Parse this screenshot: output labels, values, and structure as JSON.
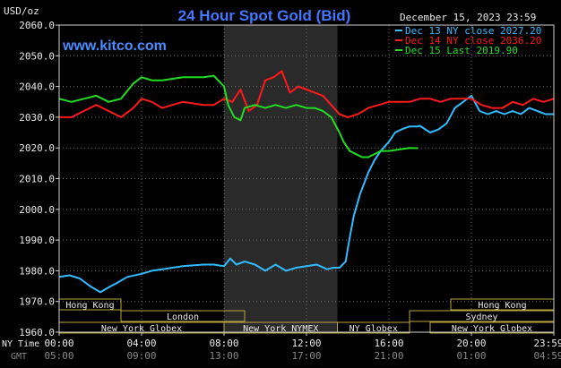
{
  "header": {
    "unit": "USD/oz",
    "title": "24 Hour Spot Gold (Bid)",
    "date": "December 15, 2023 23:59",
    "watermark": "www.kitco.com"
  },
  "legend": [
    {
      "label": "Dec 13 NY close 2027.20",
      "color": "#33bbff"
    },
    {
      "label": "Dec 14 NY close 2036.20",
      "color": "#ff1a1a"
    },
    {
      "label": "Dec 15 Last 2019.90",
      "color": "#22dd22"
    }
  ],
  "markets": [
    {
      "label": "Hong Kong",
      "row": 1,
      "start": "00:00",
      "end": "03:00"
    },
    {
      "label": "London",
      "row": 2,
      "start": "03:00",
      "end": "09:00"
    },
    {
      "label": "New York Globex",
      "row": 3,
      "start": "00:00",
      "end": "08:00"
    },
    {
      "label": "New York NYMEX",
      "row": 3,
      "start": "08:00",
      "end": "13:30"
    },
    {
      "label": "NY Globex",
      "row": 3,
      "start": "13:30",
      "end": "17:00"
    },
    {
      "label": "Hong Kong",
      "row": 1,
      "start": "19:00",
      "end": "24:00"
    },
    {
      "label": "Sydney",
      "row": 2,
      "start": "17:00",
      "end": "24:00"
    },
    {
      "label": "New York Globex",
      "row": 3,
      "start": "18:00",
      "end": "24:00"
    }
  ],
  "axis_labels": {
    "ny_time": "NY Time",
    "gmt": "GMT"
  },
  "x_ticks": [
    "00:00",
    "04:00",
    "08:00",
    "12:00",
    "16:00",
    "20:00",
    "23:59"
  ],
  "gmt_ticks": [
    "05:00",
    "09:00",
    "13:00",
    "17:00",
    "21:00",
    "01:00",
    "04:59"
  ],
  "y_ticks": [
    "2060.0",
    "2050.0",
    "2040.0",
    "2030.0",
    "2020.0",
    "2010.0",
    "2000.0",
    "1990.0",
    "1980.0",
    "1970.0",
    "1960.0"
  ],
  "colors": {
    "background": "#000000",
    "grid": "#6a6a6a",
    "text": "#e8e8e8",
    "title": "#4477ff",
    "session_shade": "#2a2a2a",
    "market_box": "#b8a640"
  },
  "chart_data": {
    "type": "line",
    "xlabel": "NY Time",
    "ylabel": "USD/oz",
    "ylim": [
      1960,
      2060
    ],
    "xlim": [
      0,
      24
    ],
    "grid": true,
    "legend_placement": "top-right",
    "shaded_region_hours": [
      8,
      13.5
    ],
    "series": [
      {
        "name": "Dec 13 NY close 2027.20",
        "color": "#33bbff",
        "x": [
          0,
          0.5,
          1,
          1.5,
          2,
          2.5,
          2.8,
          3.3,
          4,
          4.5,
          5,
          6,
          7,
          7.5,
          8,
          8.3,
          8.6,
          9,
          9.5,
          10,
          10.5,
          11,
          11.5,
          12,
          12.5,
          13,
          13.3,
          13.6,
          13.9,
          14.1,
          14.3,
          14.6,
          15,
          15.3,
          15.6,
          16,
          16.3,
          16.6,
          17,
          17.4,
          17.5,
          18,
          18.4,
          18.8,
          19.2,
          19.6,
          20,
          20.4,
          20.8,
          21.2,
          21.6,
          22,
          22.4,
          22.8,
          23.2,
          23.6,
          24
        ],
        "y": [
          1978,
          1978.5,
          1977.5,
          1975,
          1973,
          1975,
          1976,
          1978,
          1979,
          1980,
          1980.5,
          1981.5,
          1982,
          1982,
          1981.5,
          1984,
          1982,
          1983,
          1982,
          1980,
          1982,
          1980,
          1981,
          1981.5,
          1982,
          1980.5,
          1981,
          1981,
          1983,
          1991,
          1998,
          2005,
          2012,
          2016,
          2019,
          2022,
          2025,
          2026,
          2027,
          2027,
          2027.2,
          2025,
          2026,
          2028,
          2033,
          2035,
          2037,
          2032,
          2031,
          2032,
          2031,
          2032,
          2031,
          2033,
          2032,
          2031,
          2031
        ]
      },
      {
        "name": "Dec 14 NY close 2036.20",
        "color": "#ff1a1a",
        "x": [
          0,
          0.6,
          1.2,
          1.8,
          2.4,
          3,
          3.6,
          4,
          4.5,
          5,
          6,
          7,
          7.5,
          8,
          8.4,
          8.8,
          9.2,
          9.6,
          10,
          10.4,
          10.8,
          11.2,
          11.6,
          12,
          12.4,
          12.8,
          13.2,
          13.6,
          14,
          14.5,
          15,
          15.5,
          16,
          16.5,
          17,
          17.5,
          18,
          18.5,
          19,
          19.5,
          20,
          20.5,
          21,
          21.5,
          22,
          22.5,
          23,
          23.5,
          24
        ],
        "y": [
          2030,
          2030,
          2032,
          2034,
          2032,
          2030,
          2033,
          2036,
          2035,
          2033,
          2035,
          2034,
          2034,
          2036,
          2035,
          2039,
          2032,
          2034,
          2042,
          2043,
          2045,
          2038,
          2040,
          2039,
          2038,
          2037,
          2034,
          2031,
          2030,
          2031,
          2033,
          2034,
          2035,
          2035,
          2035,
          2036,
          2036,
          2035,
          2036,
          2036,
          2036,
          2034,
          2033,
          2033,
          2035,
          2034,
          2036,
          2035,
          2036
        ]
      },
      {
        "name": "Dec 15 Last 2019.90",
        "color": "#22dd22",
        "x": [
          0,
          0.6,
          1.2,
          1.8,
          2.4,
          3,
          3.6,
          4,
          4.5,
          5,
          6,
          7,
          7.5,
          8,
          8.2,
          8.5,
          8.8,
          9,
          9.5,
          10,
          10.5,
          11,
          11.5,
          12,
          12.4,
          12.8,
          13.2,
          13.6,
          13.8,
          14.1,
          14.4,
          14.7,
          15,
          15.3,
          15.6,
          16,
          16.5,
          17,
          17.4
        ],
        "y": [
          2036,
          2035,
          2036,
          2037,
          2035,
          2036,
          2041,
          2043,
          2042,
          2042,
          2043,
          2043,
          2043.5,
          2040,
          2034,
          2030,
          2029,
          2033,
          2034,
          2033,
          2034,
          2033,
          2034,
          2033,
          2033,
          2032,
          2030,
          2025,
          2022,
          2019,
          2018,
          2017,
          2017,
          2018,
          2019,
          2019,
          2019.5,
          2020,
          2019.9
        ]
      }
    ]
  }
}
